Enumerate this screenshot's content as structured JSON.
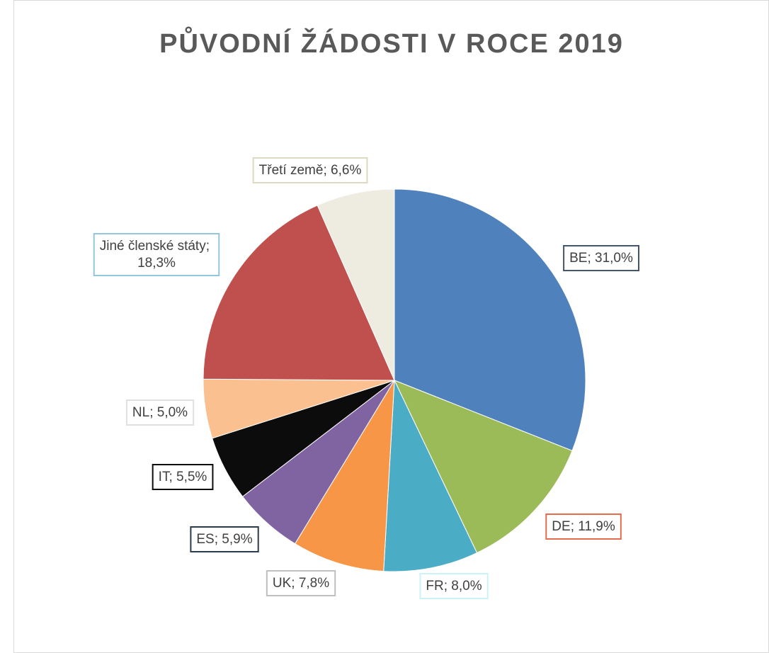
{
  "chart_data": {
    "type": "pie",
    "title": "PŮVODNÍ ŽÁDOSTI V ROCE 2019",
    "categories": [
      "BE",
      "DE",
      "FR",
      "UK",
      "ES",
      "IT",
      "NL",
      "Jiné členské státy",
      "Třetí země"
    ],
    "values": [
      31.0,
      11.9,
      8.0,
      7.8,
      5.9,
      5.5,
      5.0,
      18.3,
      6.6
    ],
    "value_labels": [
      "31,0%",
      "11,9%",
      "8,0%",
      "7,8%",
      "5,9%",
      "5,5%",
      "5,0%",
      "18,3%",
      "6,6%"
    ],
    "label_separator": "; ",
    "colors": [
      "#4f81bd",
      "#9bbb59",
      "#4bacc6",
      "#f79646",
      "#8064a2",
      "#0c0c0c",
      "#fac090",
      "#c0504d",
      "#eeece1"
    ],
    "label_border_colors": [
      "#44546a",
      "#e46c4a",
      "#ccf2f8",
      "#bfbfbf",
      "#2a3a4f",
      "#0c0c0c",
      "#e0e0e0",
      "#92c5de",
      "#ddd9c3"
    ]
  }
}
